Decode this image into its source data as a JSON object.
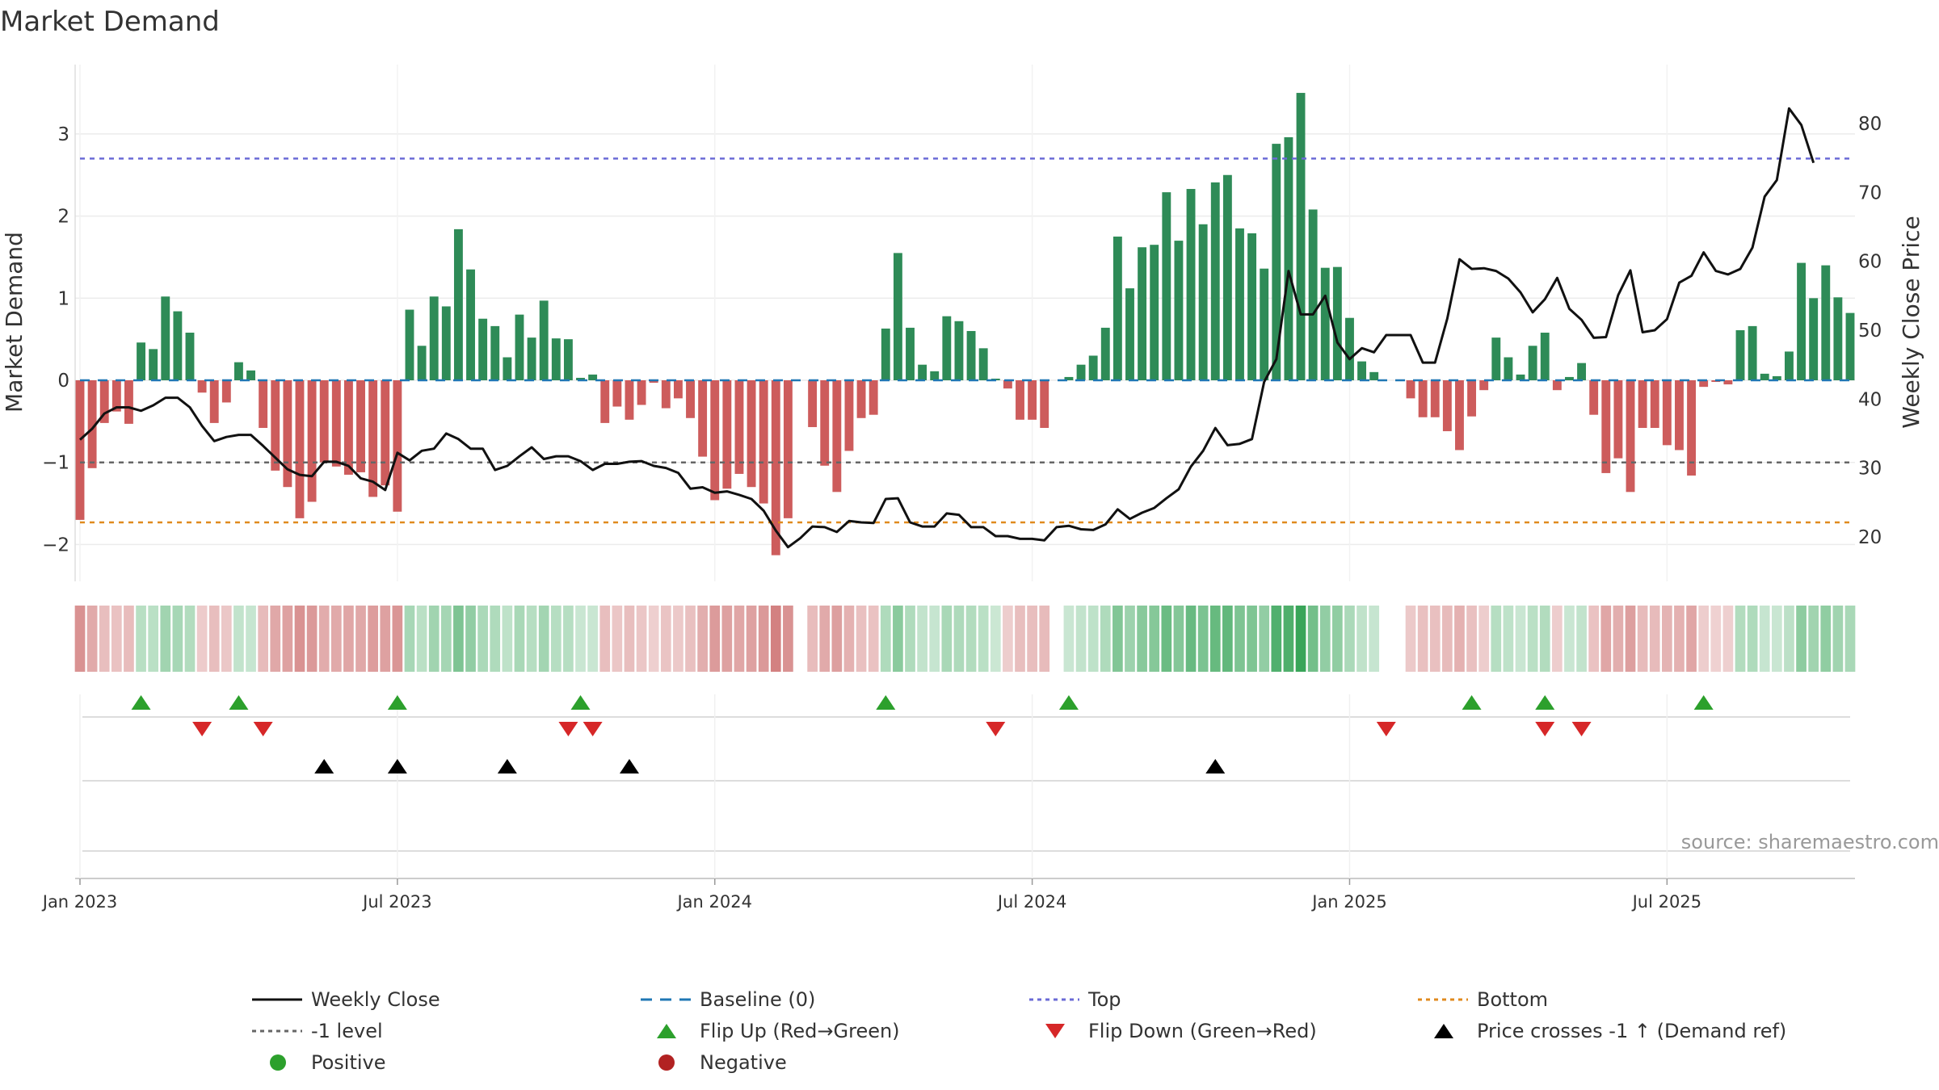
{
  "chart_data": {
    "type": "bar",
    "title": "Market Demand",
    "ylabel": "Market Demand",
    "y2label": "Weekly Close Price",
    "ylim": [
      -2.5,
      3.75
    ],
    "y2lim": [
      12.4,
      87.4
    ],
    "yticks": [
      3,
      2,
      1,
      0,
      -1,
      -2
    ],
    "y2ticks": [
      80,
      70,
      60,
      50,
      40,
      30,
      20
    ],
    "ytick_labels": [
      "3",
      "2",
      "1",
      "0",
      "−1",
      "−2"
    ],
    "xticks": [
      {
        "label": "Jan 2023",
        "week": 0
      },
      {
        "label": "Jul 2023",
        "week": 26
      },
      {
        "label": "Jan 2024",
        "week": 52
      },
      {
        "label": "Jul 2024",
        "week": 78
      },
      {
        "label": "Jan 2025",
        "week": 104
      },
      {
        "label": "Jul 2025",
        "week": 130
      }
    ],
    "ref_lines": [
      {
        "name": "Top",
        "value": 2.7,
        "color": "#6b6bd6",
        "dash": "6,6"
      },
      {
        "name": "-1 level",
        "value": -1,
        "color": "#666666",
        "dash": "6,6"
      },
      {
        "name": "Bottom",
        "value": -1.73,
        "color": "#e08a1e",
        "dash": "6,6"
      }
    ],
    "demand": [
      -1.7,
      -1.07,
      -0.52,
      -0.38,
      -0.53,
      0.46,
      0.38,
      1.02,
      0.84,
      0.58,
      -0.15,
      -0.52,
      -0.27,
      0.22,
      0.12,
      -0.58,
      -1.1,
      -1.3,
      -1.68,
      -1.48,
      -1.0,
      -1.05,
      -1.15,
      -1.12,
      -1.42,
      -1.28,
      -1.6,
      0.86,
      0.42,
      1.02,
      0.9,
      1.84,
      1.35,
      0.75,
      0.66,
      0.28,
      0.8,
      0.52,
      0.97,
      0.51,
      0.5,
      0.03,
      0.07,
      -0.52,
      -0.32,
      -0.48,
      -0.3,
      -0.03,
      -0.34,
      -0.22,
      -0.46,
      -0.93,
      -1.46,
      -1.32,
      -1.14,
      -1.3,
      -1.5,
      -2.13,
      -1.68,
      0,
      -0.57,
      -1.04,
      -1.36,
      -0.86,
      -0.46,
      -0.42,
      0.63,
      1.55,
      0.64,
      0.19,
      0.11,
      0.78,
      0.72,
      0.6,
      0.39,
      0.02,
      -0.1,
      -0.48,
      -0.48,
      -0.58,
      0.0,
      0.04,
      0.19,
      0.3,
      0.64,
      1.75,
      1.12,
      1.62,
      1.65,
      2.29,
      1.7,
      2.33,
      1.9,
      2.41,
      2.5,
      1.85,
      1.79,
      1.36,
      2.88,
      2.96,
      3.5,
      2.08,
      1.37,
      1.38,
      0.76,
      0.23,
      0.1,
      0.0,
      0.0,
      -0.22,
      -0.45,
      -0.45,
      -0.62,
      -0.85,
      -0.44,
      -0.12,
      0.52,
      0.28,
      0.07,
      0.42,
      0.58,
      -0.12,
      0.04,
      0.21,
      -0.42,
      -1.13,
      -0.95,
      -1.36,
      -0.58,
      -0.58,
      -0.79,
      -0.85,
      -1.16,
      -0.08,
      -0.02,
      -0.05,
      0.61,
      0.66,
      0.08,
      0.05,
      0.35,
      1.43,
      1.0,
      1.4,
      1.01,
      0.82
    ],
    "weekly_close": [
      34.1,
      35.7,
      37.9,
      38.8,
      38.8,
      38.3,
      39.1,
      40.2,
      40.2,
      38.8,
      36.1,
      33.9,
      34.5,
      34.8,
      34.8,
      33.2,
      31.5,
      29.8,
      29.0,
      28.8,
      30.9,
      30.9,
      30.3,
      28.5,
      28.0,
      26.8,
      32.2,
      31.1,
      32.5,
      32.8,
      35.0,
      34.2,
      32.8,
      32.8,
      29.7,
      30.3,
      31.7,
      33.0,
      31.3,
      31.7,
      31.7,
      31.0,
      29.7,
      30.6,
      30.6,
      30.9,
      31.0,
      30.3,
      30.0,
      29.3,
      27.0,
      27.2,
      26.4,
      26.6,
      26.1,
      25.5,
      23.8,
      20.9,
      18.5,
      19.8,
      21.5,
      21.4,
      20.7,
      22.3,
      22.1,
      22.0,
      25.5,
      25.6,
      22.1,
      21.5,
      21.5,
      23.4,
      23.2,
      21.4,
      21.4,
      20.1,
      20.1,
      19.7,
      19.7,
      19.5,
      21.4,
      21.6,
      21.1,
      21.0,
      21.8,
      24.0,
      22.6,
      23.5,
      24.2,
      25.6,
      26.9,
      30.2,
      32.5,
      35.8,
      33.3,
      33.5,
      34.2,
      42.5,
      45.8,
      58.6,
      52.3,
      52.3,
      55.0,
      48.2,
      45.8,
      47.4,
      46.8,
      49.3,
      49.3,
      49.3,
      45.3,
      45.3,
      51.7,
      60.3,
      58.9,
      59.0,
      58.6,
      57.5,
      55.5,
      52.6,
      54.5,
      57.6,
      53.1,
      51.5,
      48.9,
      49.0,
      55.1,
      58.7,
      49.7,
      50.0,
      51.6,
      56.9,
      57.9,
      61.3,
      58.6,
      58.1,
      58.9,
      62.0,
      69.4,
      71.8,
      82.2,
      79.8,
      74.3
    ],
    "flip_up": [
      5,
      13,
      26,
      41,
      66,
      81,
      114,
      120,
      133
    ],
    "flip_down": [
      10,
      15,
      40,
      42,
      75,
      107,
      120,
      123
    ],
    "price_cross": [
      20,
      26,
      35,
      45,
      93
    ],
    "colors": {
      "positive_bar": "#2e8b57",
      "negative_bar": "#cd5c5c",
      "close_line": "#111111",
      "baseline": "#1f77b4",
      "flip_up": "#2ca02c",
      "flip_down": "#d62728",
      "price_cross": "#000000"
    },
    "legend": [
      {
        "label": "Weekly Close",
        "kind": "line",
        "color": "#111111"
      },
      {
        "label": "Baseline (0)",
        "kind": "longdash",
        "color": "#1f77b4"
      },
      {
        "label": "Top",
        "kind": "dot",
        "color": "#6b6bd6"
      },
      {
        "label": "Bottom",
        "kind": "dot",
        "color": "#e08a1e"
      },
      {
        "label": "-1 level",
        "kind": "dot",
        "color": "#666666"
      },
      {
        "label": "Flip Up (Red→Green)",
        "kind": "tri-up",
        "color": "#2ca02c"
      },
      {
        "label": "Flip Down (Green→Red)",
        "kind": "tri-down",
        "color": "#d62728"
      },
      {
        "label": "Price crosses -1 ↑ (Demand ref)",
        "kind": "tri-up",
        "color": "#000000"
      },
      {
        "label": "Positive",
        "kind": "circle",
        "color": "#2ca02c"
      },
      {
        "label": "Negative",
        "kind": "circle",
        "color": "#b22222"
      }
    ],
    "legend_placement": "bottom",
    "grid": true
  },
  "source_text": "source: sharemaestro.com"
}
